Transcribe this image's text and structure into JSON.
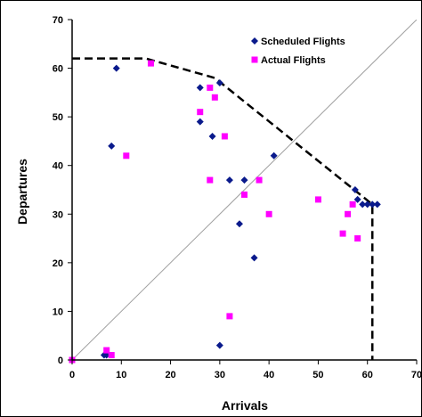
{
  "chart_data": {
    "type": "scatter",
    "xlabel": "Arrivals",
    "ylabel": "Departures",
    "xlim": [
      0,
      70
    ],
    "ylim": [
      0,
      70
    ],
    "x_ticks": [
      "0",
      "10",
      "20",
      "30",
      "40",
      "50",
      "60",
      "70"
    ],
    "y_ticks": [
      "0",
      "10",
      "20",
      "30",
      "40",
      "50",
      "60",
      "70"
    ],
    "grid": false,
    "legend_position": "top-right",
    "series": [
      {
        "name": "Scheduled Flights",
        "marker": "diamond",
        "color": "#0a1a8c",
        "points": [
          [
            6.5,
            1
          ],
          [
            7,
            1
          ],
          [
            8,
            44
          ],
          [
            9,
            60
          ],
          [
            26,
            56
          ],
          [
            26,
            49
          ],
          [
            28.5,
            46
          ],
          [
            30,
            57
          ],
          [
            32,
            37
          ],
          [
            30,
            3
          ],
          [
            34,
            28
          ],
          [
            35,
            37
          ],
          [
            37,
            21
          ],
          [
            41,
            42
          ],
          [
            57.5,
            35
          ],
          [
            58,
            33
          ],
          [
            59,
            32
          ],
          [
            60,
            32
          ],
          [
            61,
            32
          ],
          [
            62,
            32
          ]
        ]
      },
      {
        "name": "Actual Flights",
        "marker": "square",
        "color": "#ff00ff",
        "points": [
          [
            0,
            0
          ],
          [
            7,
            2
          ],
          [
            8,
            1
          ],
          [
            11,
            42
          ],
          [
            16,
            61
          ],
          [
            26,
            51
          ],
          [
            28,
            56
          ],
          [
            29,
            54
          ],
          [
            31,
            46
          ],
          [
            28,
            37
          ],
          [
            35,
            34
          ],
          [
            38,
            37
          ],
          [
            32,
            9
          ],
          [
            40,
            30
          ],
          [
            50,
            33
          ],
          [
            55,
            26
          ],
          [
            56,
            30
          ],
          [
            57,
            32
          ],
          [
            58,
            25
          ]
        ]
      }
    ],
    "reference_line": {
      "from": [
        0,
        0
      ],
      "to": [
        70,
        70
      ],
      "color": "#a0a0a0"
    },
    "envelope": {
      "style": "dashed",
      "color": "#000000",
      "points": [
        [
          0,
          62
        ],
        [
          15,
          62
        ],
        [
          29,
          58
        ],
        [
          61,
          32
        ],
        [
          61,
          0
        ]
      ]
    }
  }
}
